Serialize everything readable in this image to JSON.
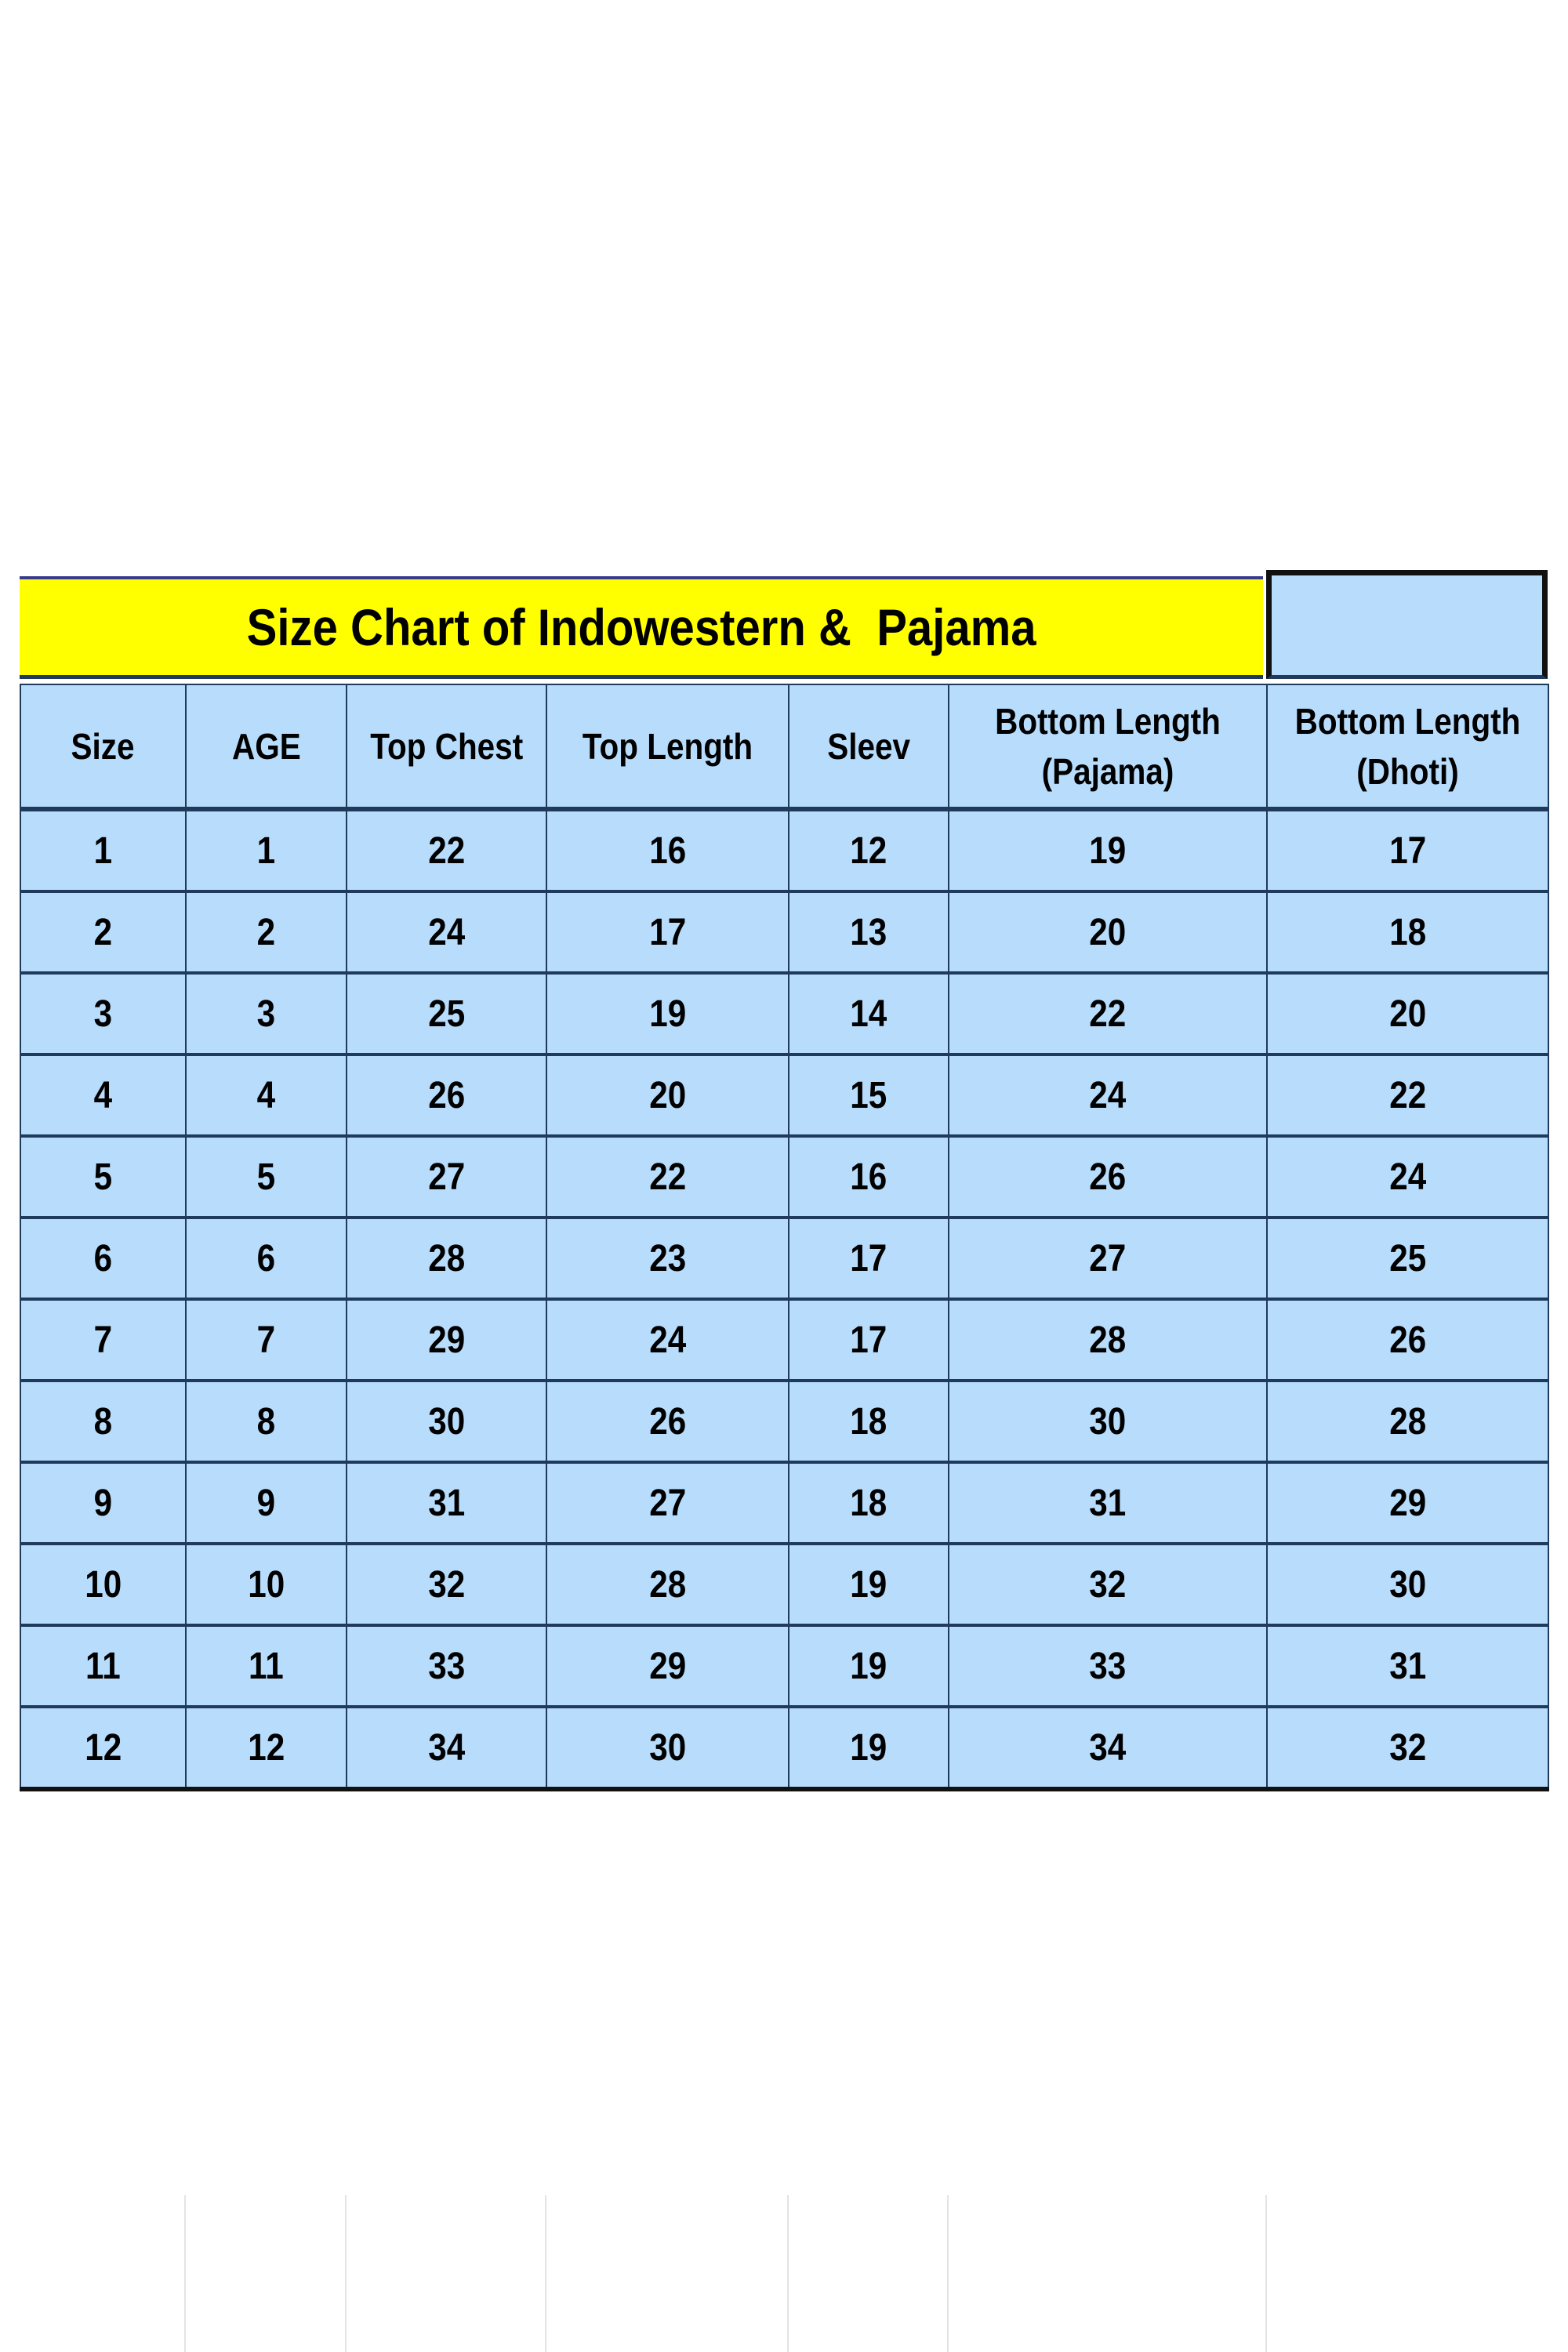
{
  "title": "Size Chart of Indowestern &  Pajama",
  "colors": {
    "title_bg": "#ffff00",
    "cell_bg": "#b8dcfb",
    "border": "#1f3a5a"
  },
  "headers": [
    "Size",
    "AGE",
    "Top Chest",
    "Top Length",
    "Sleev",
    "Bottom Length (Pajama)",
    "Bottom Length (Dhoti)"
  ],
  "rows": [
    [
      "1",
      "1",
      "22",
      "16",
      "12",
      "19",
      "17"
    ],
    [
      "2",
      "2",
      "24",
      "17",
      "13",
      "20",
      "18"
    ],
    [
      "3",
      "3",
      "25",
      "19",
      "14",
      "22",
      "20"
    ],
    [
      "4",
      "4",
      "26",
      "20",
      "15",
      "24",
      "22"
    ],
    [
      "5",
      "5",
      "27",
      "22",
      "16",
      "26",
      "24"
    ],
    [
      "6",
      "6",
      "28",
      "23",
      "17",
      "27",
      "25"
    ],
    [
      "7",
      "7",
      "29",
      "24",
      "17",
      "28",
      "26"
    ],
    [
      "8",
      "8",
      "30",
      "26",
      "18",
      "30",
      "28"
    ],
    [
      "9",
      "9",
      "31",
      "27",
      "18",
      "31",
      "29"
    ],
    [
      "10",
      "10",
      "32",
      "28",
      "19",
      "32",
      "30"
    ],
    [
      "11",
      "11",
      "33",
      "29",
      "19",
      "33",
      "31"
    ],
    [
      "12",
      "12",
      "34",
      "30",
      "19",
      "34",
      "32"
    ]
  ]
}
